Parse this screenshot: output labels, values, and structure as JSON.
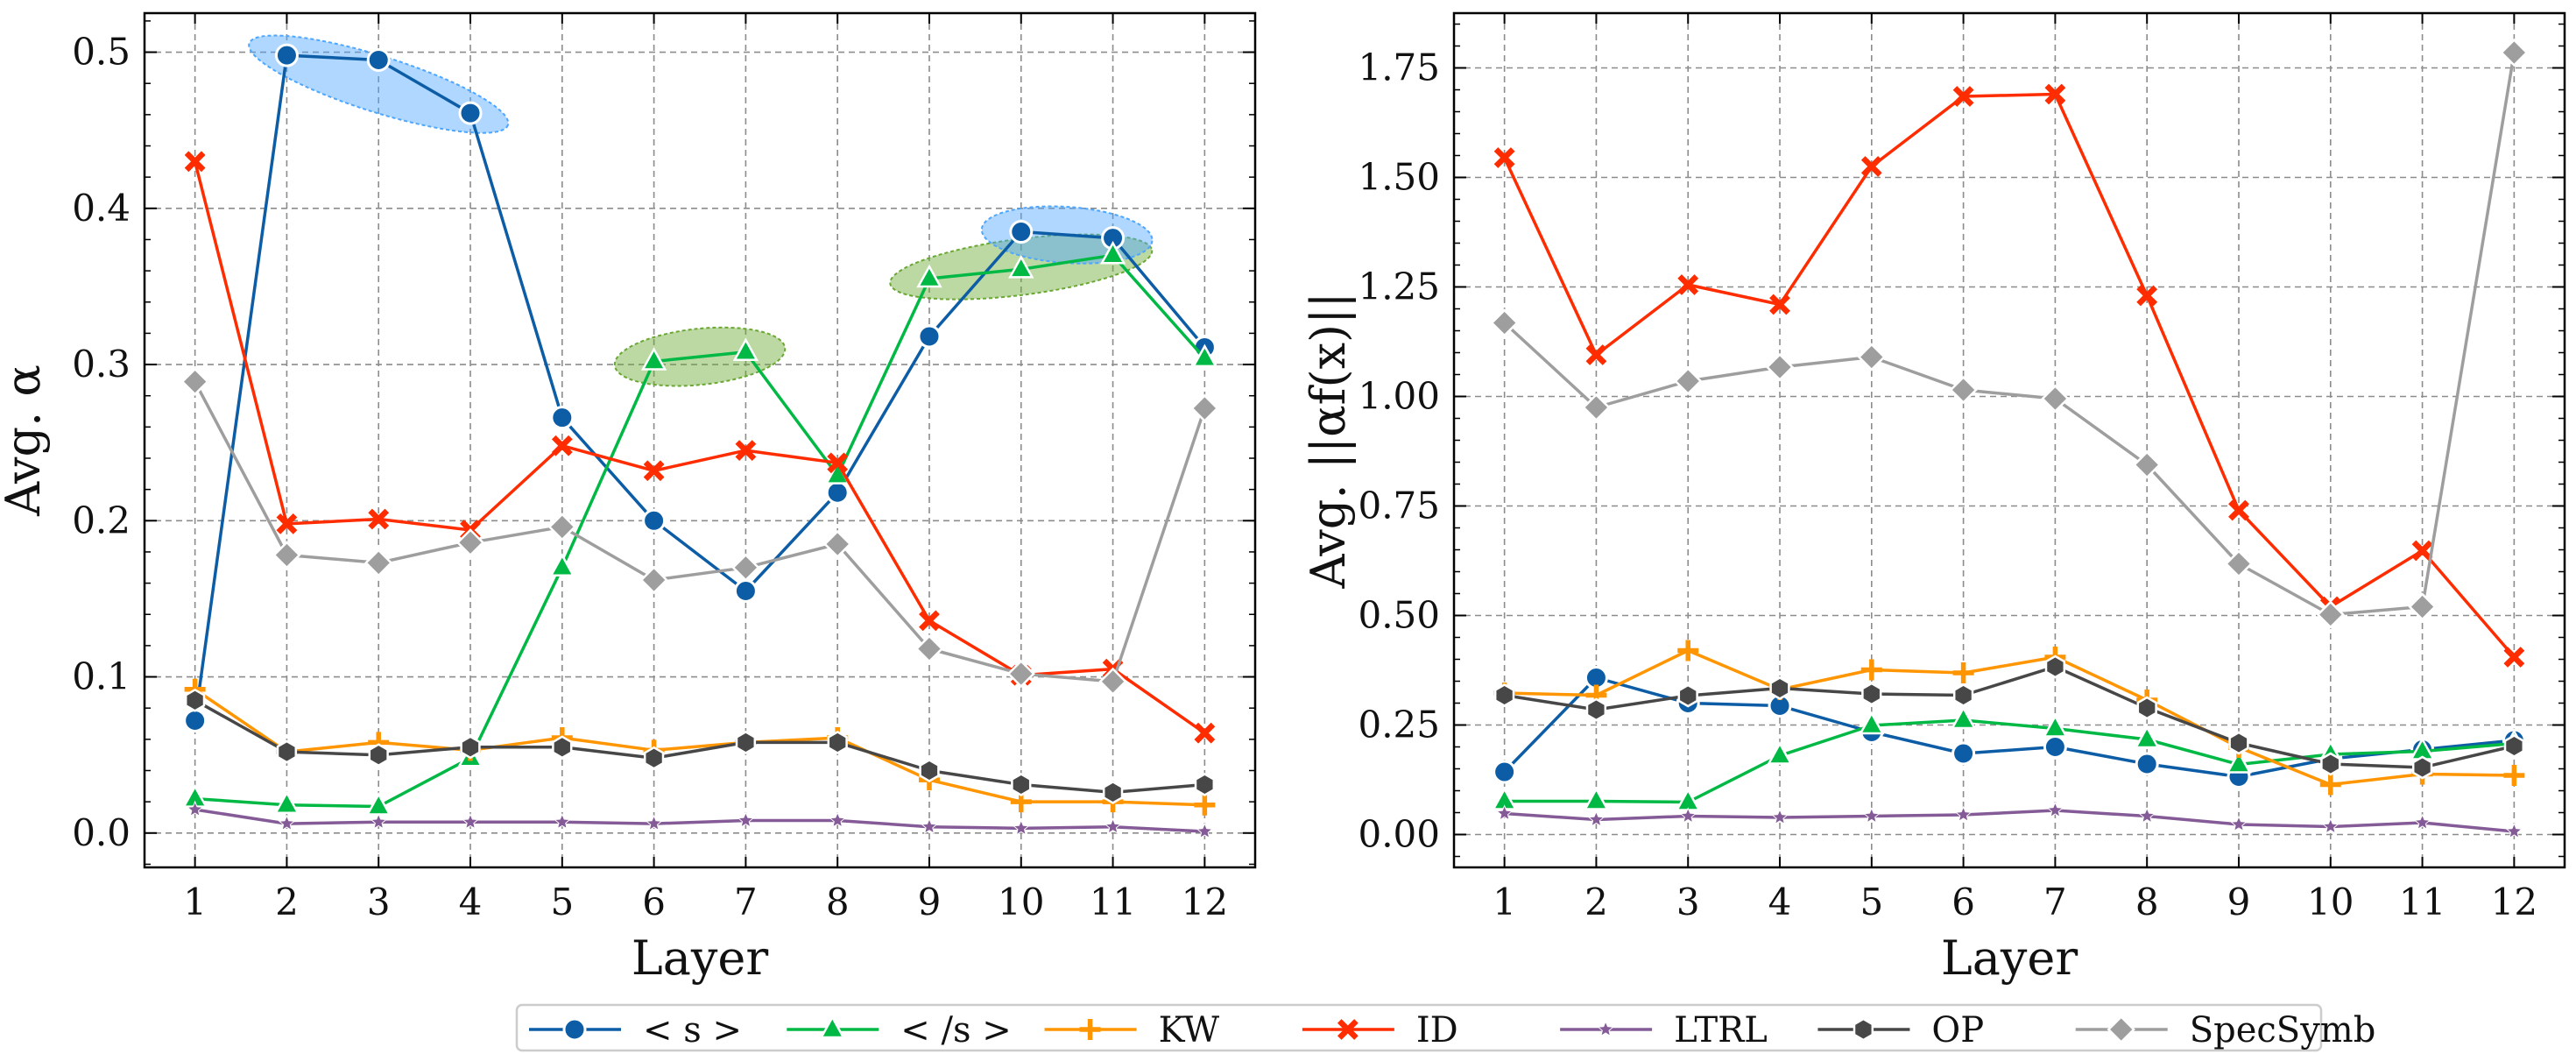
{
  "legend": [
    {
      "key": "s",
      "label": "< s >",
      "color": "#0c5da5",
      "marker": "circle"
    },
    {
      "key": "es",
      "label": "< /s >",
      "color": "#00b945",
      "marker": "triangle"
    },
    {
      "key": "kw",
      "label": "KW",
      "color": "#ff9500",
      "marker": "plus"
    },
    {
      "key": "id",
      "label": "ID",
      "color": "#ff2c00",
      "marker": "x"
    },
    {
      "key": "ltrl",
      "label": "LTRL",
      "color": "#845b97",
      "marker": "star"
    },
    {
      "key": "op",
      "label": "OP",
      "color": "#474747",
      "marker": "hexagon"
    },
    {
      "key": "spec",
      "label": "SpecSymb",
      "color": "#9e9e9e",
      "marker": "diamond"
    }
  ],
  "chart_data": [
    {
      "type": "line",
      "xlabel": "Layer",
      "ylabel": "Avg. α",
      "x": [
        1,
        2,
        3,
        4,
        5,
        6,
        7,
        8,
        9,
        10,
        11,
        12
      ],
      "xticks": [
        "1",
        "2",
        "3",
        "4",
        "5",
        "6",
        "7",
        "8",
        "9",
        "10",
        "11",
        "12"
      ],
      "yticks": [
        "0.0",
        "0.1",
        "0.2",
        "0.3",
        "0.4",
        "0.5"
      ],
      "ylim": [
        -0.022,
        0.525
      ],
      "grid": true,
      "highlights": [
        {
          "series": "< s >",
          "layers": [
            2,
            4
          ],
          "color": "#4da6ff"
        },
        {
          "series": "< /s >",
          "layers": [
            6,
            7
          ],
          "color": "#6aa832"
        },
        {
          "series": "< /s >",
          "layers": [
            9,
            11
          ],
          "color": "#6aa832"
        },
        {
          "series": "< s >",
          "layers": [
            10,
            11
          ],
          "color": "#4da6ff"
        }
      ],
      "series": [
        {
          "name": "< s >",
          "values": [
            0.072,
            0.498,
            0.495,
            0.461,
            0.266,
            0.2,
            0.155,
            0.218,
            0.318,
            0.385,
            0.381,
            0.311
          ]
        },
        {
          "name": "< /s >",
          "values": [
            0.022,
            0.018,
            0.017,
            0.048,
            0.17,
            0.302,
            0.308,
            0.229,
            0.355,
            0.361,
            0.37,
            0.304
          ]
        },
        {
          "name": "KW",
          "values": [
            0.092,
            0.052,
            0.058,
            0.053,
            0.061,
            0.053,
            0.058,
            0.061,
            0.034,
            0.02,
            0.02,
            0.018
          ]
        },
        {
          "name": "ID",
          "values": [
            0.43,
            0.198,
            0.201,
            0.194,
            0.248,
            0.232,
            0.245,
            0.237,
            0.136,
            0.101,
            0.105,
            0.064
          ]
        },
        {
          "name": "LTRL",
          "values": [
            0.015,
            0.006,
            0.007,
            0.007,
            0.007,
            0.006,
            0.008,
            0.008,
            0.004,
            0.003,
            0.004,
            0.001
          ]
        },
        {
          "name": "OP",
          "values": [
            0.085,
            0.052,
            0.05,
            0.055,
            0.055,
            0.048,
            0.058,
            0.058,
            0.04,
            0.031,
            0.026,
            0.031
          ]
        },
        {
          "name": "SpecSymb",
          "values": [
            0.289,
            0.178,
            0.173,
            0.186,
            0.196,
            0.162,
            0.17,
            0.185,
            0.118,
            0.102,
            0.097,
            0.272
          ]
        }
      ]
    },
    {
      "type": "line",
      "xlabel": "Layer",
      "ylabel": "Avg. ||αf(x)||",
      "x": [
        1,
        2,
        3,
        4,
        5,
        6,
        7,
        8,
        9,
        10,
        11,
        12
      ],
      "xticks": [
        "1",
        "2",
        "3",
        "4",
        "5",
        "6",
        "7",
        "8",
        "9",
        "10",
        "11",
        "12"
      ],
      "yticks": [
        "0.00",
        "0.25",
        "0.50",
        "0.75",
        "1.00",
        "1.25",
        "1.50",
        "1.75"
      ],
      "ylim": [
        -0.075,
        1.875
      ],
      "grid": true,
      "series": [
        {
          "name": "< s >",
          "values": [
            0.143,
            0.358,
            0.3,
            0.294,
            0.234,
            0.185,
            0.2,
            0.161,
            0.132,
            0.173,
            0.194,
            0.215
          ]
        },
        {
          "name": "< /s >",
          "values": [
            0.076,
            0.076,
            0.074,
            0.18,
            0.249,
            0.261,
            0.242,
            0.217,
            0.16,
            0.183,
            0.19,
            0.208
          ]
        },
        {
          "name": "KW",
          "values": [
            0.323,
            0.318,
            0.42,
            0.331,
            0.376,
            0.369,
            0.405,
            0.307,
            0.199,
            0.114,
            0.138,
            0.135
          ]
        },
        {
          "name": "ID",
          "values": [
            1.545,
            1.095,
            1.255,
            1.21,
            1.525,
            1.685,
            1.69,
            1.23,
            0.74,
            0.52,
            0.648,
            0.405
          ]
        },
        {
          "name": "LTRL",
          "values": [
            0.048,
            0.034,
            0.042,
            0.039,
            0.042,
            0.045,
            0.055,
            0.042,
            0.023,
            0.018,
            0.027,
            0.007
          ]
        },
        {
          "name": "OP",
          "values": [
            0.318,
            0.285,
            0.317,
            0.334,
            0.321,
            0.318,
            0.383,
            0.289,
            0.209,
            0.161,
            0.153,
            0.202
          ]
        },
        {
          "name": "SpecSymb",
          "values": [
            1.168,
            0.975,
            1.035,
            1.067,
            1.09,
            1.015,
            0.995,
            0.844,
            0.618,
            0.502,
            0.52,
            1.785
          ]
        }
      ]
    }
  ]
}
